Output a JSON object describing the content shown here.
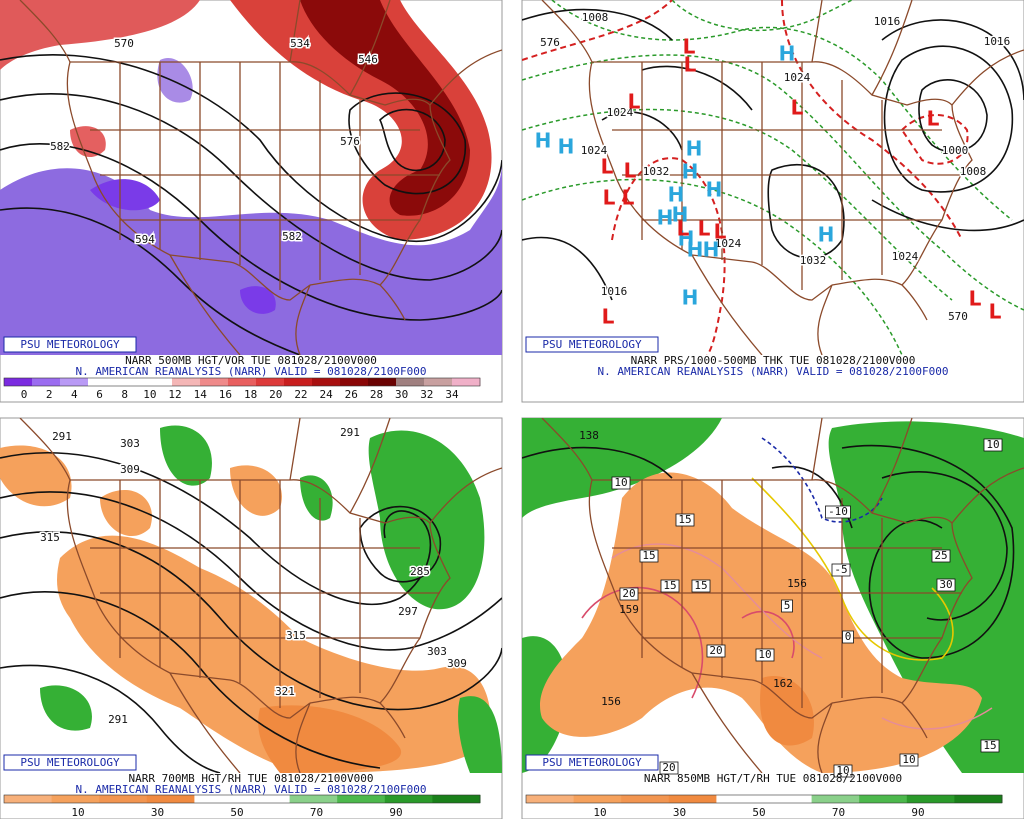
{
  "panels": [
    {
      "badge": "PSU METEOROLOGY",
      "title": "NARR 500MB HGT/VOR TUE 081028/2100V000",
      "subtitle": "N. AMERICAN REANALYSIS (NARR) VALID = 081028/2100F000",
      "colorbar_labels": [
        0,
        2,
        4,
        6,
        8,
        10,
        12,
        14,
        16,
        18,
        20,
        22,
        24,
        26,
        28,
        30,
        32,
        34
      ],
      "contour_labels": [
        "570",
        "534",
        "546",
        "582",
        "576",
        "594",
        "582"
      ]
    },
    {
      "badge": "PSU METEOROLOGY",
      "title": "NARR PRS/1000-500MB THK TUE 081028/2100V000",
      "subtitle": "N. AMERICAN REANALYSIS (NARR) VALID = 081028/2100F000",
      "contour_labels": [
        "1008",
        "576",
        "1016",
        "1016",
        "1024",
        "1024",
        "1024",
        "1032",
        "1024",
        "1032",
        "1024",
        "1016",
        "1008",
        "1000",
        "570"
      ],
      "highs": [
        "H",
        "H",
        "H",
        "H",
        "H",
        "H",
        "H",
        "H",
        "H",
        "H",
        "H",
        "H",
        "H",
        "H"
      ],
      "lows": [
        "L",
        "L",
        "L",
        "L",
        "L",
        "L",
        "L",
        "L",
        "L",
        "L",
        "L",
        "L",
        "L",
        "L",
        "L"
      ]
    },
    {
      "badge": "PSU METEOROLOGY",
      "title": "NARR 700MB HGT/RH TUE 081028/2100V000",
      "subtitle": "N. AMERICAN REANALYSIS (NARR) VALID = 081028/2100F000",
      "colorbar_labels": [
        10,
        30,
        50,
        70,
        90
      ],
      "contour_labels": [
        "291",
        "303",
        "309",
        "315",
        "291",
        "315",
        "303",
        "309",
        "321",
        "291",
        "297",
        "285"
      ]
    },
    {
      "badge": "PSU METEOROLOGY",
      "title": "NARR 850MB HGT/T/RH TUE 081028/2100V000",
      "colorbar_labels": [
        10,
        30,
        50,
        70,
        90
      ],
      "contour_labels": [
        "138",
        "10",
        "10",
        "15",
        "-10",
        "15",
        "-5",
        "25",
        "15",
        "15",
        "156",
        "20",
        "159",
        "5",
        "30",
        "0",
        "20",
        "10",
        "162",
        "156",
        "15",
        "20",
        "10",
        "10"
      ]
    }
  ]
}
